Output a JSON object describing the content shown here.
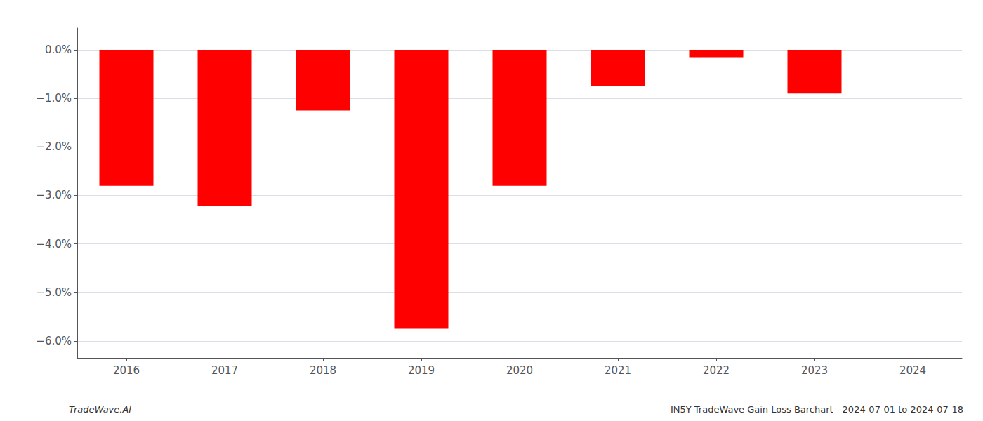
{
  "chart_data": {
    "type": "bar",
    "categories": [
      "2016",
      "2017",
      "2018",
      "2019",
      "2020",
      "2021",
      "2022",
      "2023",
      "2024"
    ],
    "values": [
      -2.8,
      -3.22,
      -1.25,
      -5.75,
      -2.8,
      -0.75,
      -0.15,
      -0.9,
      0.0
    ],
    "color": "#ff0000",
    "ylim": [
      -6.35,
      0.45
    ],
    "yticks": [
      {
        "value": 0.0,
        "label": "0.0%"
      },
      {
        "value": -1.0,
        "label": "−1.0%"
      },
      {
        "value": -2.0,
        "label": "−2.0%"
      },
      {
        "value": -3.0,
        "label": "−3.0%"
      },
      {
        "value": -4.0,
        "label": "−4.0%"
      },
      {
        "value": -5.0,
        "label": "−5.0%"
      },
      {
        "value": -6.0,
        "label": "−6.0%"
      }
    ],
    "grid": true,
    "annotations": [
      "TradeWave.AI",
      "IN5Y TradeWave Gain Loss Barchart - 2024-07-01 to 2024-07-18"
    ]
  }
}
